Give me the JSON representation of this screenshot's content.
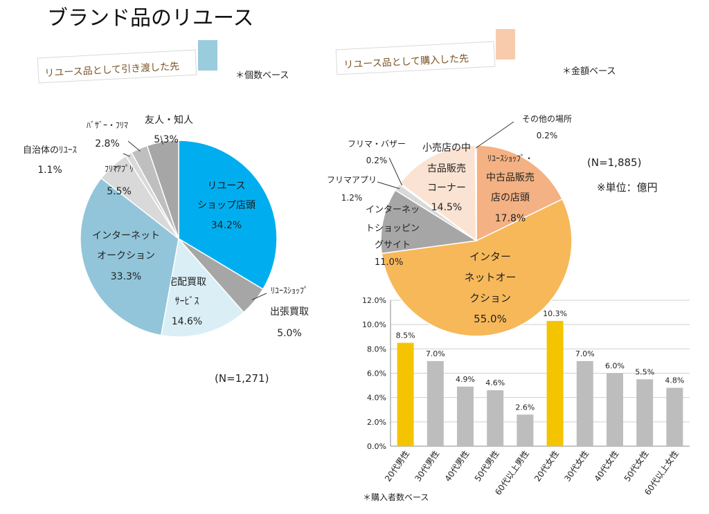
{
  "page_title": "ブランド品のリユース",
  "left_banner": "リユース品として引き渡した先",
  "right_banner": "リユース品として購入した先",
  "left_note": "＊個数ベース",
  "right_note": "＊金額ベース",
  "colors": {
    "left_accent": "#99CCDD",
    "right_accent": "#F8CBAD",
    "highlight_bar": "#F5C400",
    "normal_bar": "#BDBDBD"
  },
  "chart_data": [
    {
      "type": "pie",
      "title": "リユース品として引き渡した先",
      "basis": "＊個数ベース",
      "n_label": "(N=1,271)",
      "slices": [
        {
          "label_lines": [
            "リユース",
            "ショップ店頭"
          ],
          "value": 34.2,
          "pct_label": "34.2%",
          "color": "#00AEEF"
        },
        {
          "label_lines": [
            "ﾘﾕｰｽｼｮｯﾌﾟ",
            "出張買取"
          ],
          "value": 5.0,
          "pct_label": "5.0%",
          "color": "#A6A6A6"
        },
        {
          "label_lines": [
            "宅配買取",
            "ｻｰﾋﾞｽ"
          ],
          "value": 14.6,
          "pct_label": "14.6%",
          "color": "#DAEEF6"
        },
        {
          "label_lines": [
            "インターネット",
            "オークション"
          ],
          "value": 33.3,
          "pct_label": "33.3%",
          "color": "#92C5DA"
        },
        {
          "label_lines": [
            "ﾌﾘﾏｱﾌﾟﾘ"
          ],
          "value": 5.5,
          "pct_label": "5.5%",
          "color": "#D9D9D9"
        },
        {
          "label_lines": [
            "自治体のﾘﾕｰｽ"
          ],
          "value": 1.1,
          "pct_label": "1.1%",
          "color": "#D9D9D9"
        },
        {
          "label_lines": [
            "ﾊﾞｻﾞｰ・ﾌﾘﾏ"
          ],
          "value": 2.8,
          "pct_label": "2.8%",
          "color": "#BFBFBF"
        },
        {
          "label_lines": [
            "友人・知人"
          ],
          "value": 5.3,
          "pct_label": "5.3%",
          "color": "#A6A6A6"
        }
      ]
    },
    {
      "type": "pie",
      "title": "リユース品として購入した先",
      "basis": "＊金額ベース",
      "n_label": "(N=1,885)",
      "unit_label": "※単位：億円",
      "slices": [
        {
          "label_lines": [
            "ﾘﾕｰｽｼｮｯﾌﾟ・",
            "中古品販売",
            "店の店頭"
          ],
          "value": 17.8,
          "pct_label": "17.8%",
          "color": "#F4B183"
        },
        {
          "label_lines": [
            "インター",
            "ネットオー",
            "クション"
          ],
          "value": 55.0,
          "pct_label": "55.0%",
          "color": "#F7B85A"
        },
        {
          "label_lines": [
            "インターネッ",
            "トショッピン",
            "グサイト"
          ],
          "value": 11.0,
          "pct_label": "11.0%",
          "color": "#A6A6A6"
        },
        {
          "label_lines": [
            "フリマアプリ"
          ],
          "value": 1.2,
          "pct_label": "1.2%",
          "color": "#D9D9D9"
        },
        {
          "label_lines": [
            "フリマ・バザー"
          ],
          "value": 0.2,
          "pct_label": "0.2%",
          "color": "#BFBFBF"
        },
        {
          "label_lines": [
            "小売店の中",
            "古品販売",
            "コーナー"
          ],
          "value": 14.5,
          "pct_label": "14.5%",
          "color": "#FBE3D3"
        },
        {
          "label_lines": [
            "その他の場所"
          ],
          "value": 0.2,
          "pct_label": "0.2%",
          "color": "#BFBFBF"
        }
      ]
    },
    {
      "type": "bar",
      "title": "",
      "basis": "＊購入者数ベース",
      "categories": [
        "20代男性",
        "30代男性",
        "40代男性",
        "50代男性",
        "60代以上男性",
        "20代女性",
        "30代女性",
        "40代女性",
        "50代女性",
        "60代以上女性"
      ],
      "values": [
        8.5,
        7.0,
        4.9,
        4.6,
        2.6,
        10.3,
        7.0,
        6.0,
        5.5,
        4.8
      ],
      "value_labels": [
        "8.5%",
        "7.0%",
        "4.9%",
        "4.6%",
        "2.6%",
        "10.3%",
        "7.0%",
        "6.0%",
        "5.5%",
        "4.8%"
      ],
      "highlight": [
        true,
        false,
        false,
        false,
        false,
        true,
        false,
        false,
        false,
        false
      ],
      "ylim": [
        0,
        12
      ],
      "yticks": [
        "0.0%",
        "2.0%",
        "4.0%",
        "6.0%",
        "8.0%",
        "10.0%",
        "12.0%"
      ],
      "grid": true
    }
  ]
}
